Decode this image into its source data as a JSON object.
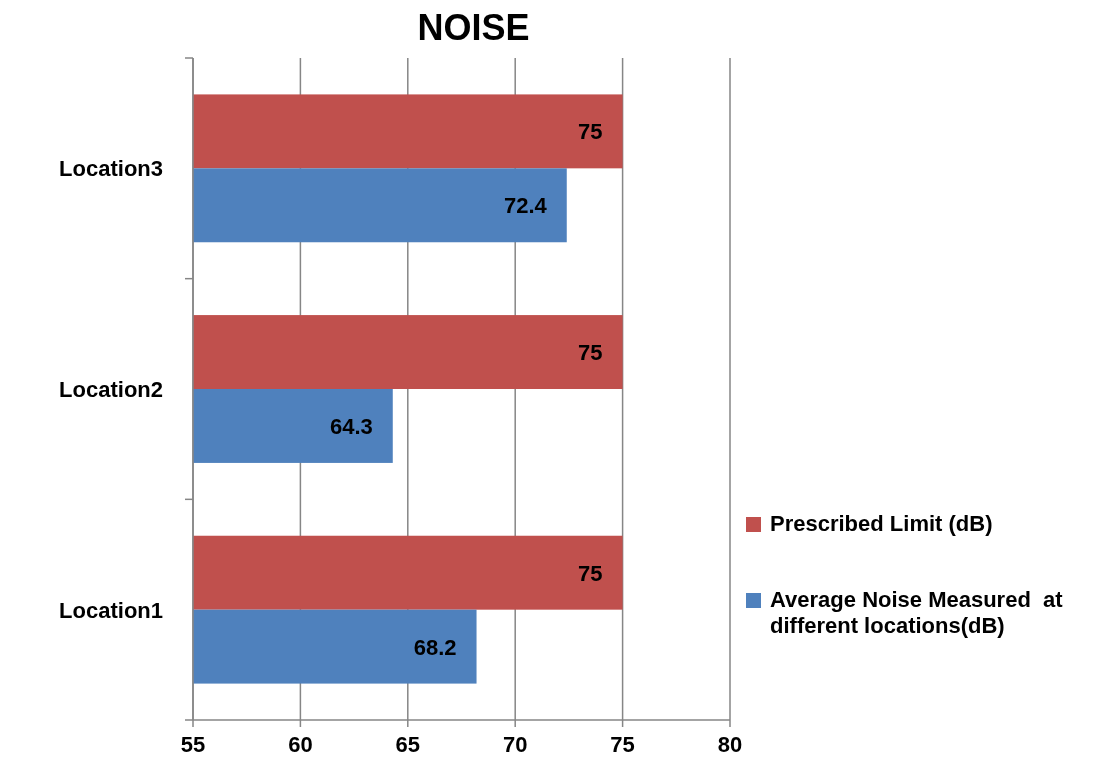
{
  "chart_data": {
    "type": "bar",
    "orientation": "horizontal",
    "title": "NOISE",
    "categories": [
      "Location3",
      "Location2",
      "Location1"
    ],
    "series": [
      {
        "name": "Prescribed Limit (dB)",
        "color": "#c0504d",
        "values": [
          75,
          75,
          75
        ]
      },
      {
        "name": "Average Noise Measured  at different locations(dB)",
        "color": "#4f81bd",
        "values": [
          72.4,
          64.3,
          68.2
        ]
      }
    ],
    "xlim": [
      55,
      80
    ],
    "xticks": [
      55,
      60,
      65,
      70,
      75,
      80
    ],
    "grid": "x",
    "data_labels": true,
    "legend": "right"
  }
}
